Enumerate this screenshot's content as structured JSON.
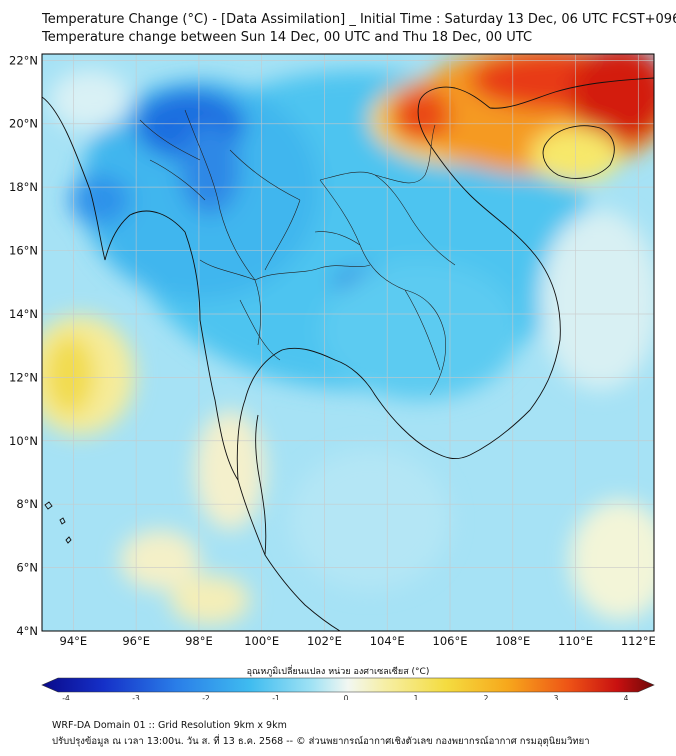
{
  "header": {
    "title_line1": "Temperature Change (°C) - [Data Assimilation] _ Initial Time : Saturday 13 Dec, 06 UTC FCST+096",
    "title_line2": "Temperature change between Sun 14 Dec, 00 UTC and Thu 18 Dec, 00 UTC"
  },
  "map": {
    "lat_labels": [
      "22°N",
      "20°N",
      "18°N",
      "16°N",
      "14°N",
      "12°N",
      "10°N",
      "8°N",
      "6°N",
      "4°N"
    ],
    "lon_labels": [
      "94°E",
      "96°E",
      "98°E",
      "100°E",
      "102°E",
      "104°E",
      "106°E",
      "108°E",
      "110°E",
      "112°E"
    ],
    "lat_range": [
      4,
      22.2
    ],
    "lon_range": [
      93,
      112.5
    ]
  },
  "colorbar": {
    "title": "อุณหภูมิเปลี่ยนแปลง หน่วย องศาเซลเซียส (°C)",
    "ticks": [
      "-4",
      "-3",
      "-2",
      "-1",
      "0",
      "1",
      "2",
      "3",
      "4"
    ],
    "range": [
      -4,
      4
    ],
    "colors": [
      "#0a0a8a",
      "#1a3fd6",
      "#2f8ff0",
      "#45c4f2",
      "#a9e7f5",
      "#eef7f5",
      "#f7f0b0",
      "#f6e35a",
      "#f8b21e",
      "#f2641a",
      "#d81a10",
      "#7a0a0a"
    ]
  },
  "footer": {
    "line1": "WRF-DA Domain 01 :: Grid Resolution 9km x 9km",
    "line2": "ปรับปรุงข้อมูล ณ เวลา 13:00น. วัน ส. ที่ 13 ธ.ค. 2568 -- © ส่วนพยากรณ์อากาศเชิงตัวเลข กองพยากรณ์อากาศ กรมอุตุนิยมวิทยา"
  }
}
